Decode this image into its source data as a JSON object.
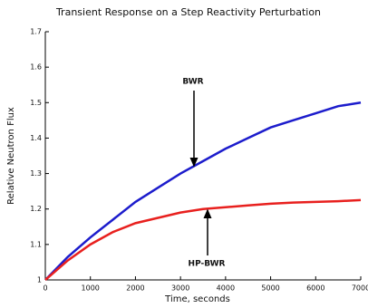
{
  "chart_data": {
    "type": "line",
    "title": "Transient Response on a Step Reactivity Perturbation",
    "x_label": "Time, seconds",
    "y_label": "Relative Neutron Flux",
    "x": [
      0,
      500,
      1000,
      1500,
      2000,
      2500,
      3000,
      3500,
      4000,
      4500,
      5000,
      5500,
      6000,
      6500,
      7000
    ],
    "series": [
      {
        "name": "BWR",
        "color": "#1c1ccc",
        "values": [
          1.0,
          1.065,
          1.12,
          1.17,
          1.22,
          1.26,
          1.3,
          1.335,
          1.37,
          1.4,
          1.43,
          1.45,
          1.47,
          1.49,
          1.5
        ]
      },
      {
        "name": "HP-BWR",
        "color": "#e8201e",
        "values": [
          1.0,
          1.055,
          1.1,
          1.135,
          1.16,
          1.175,
          1.19,
          1.2,
          1.205,
          1.21,
          1.215,
          1.218,
          1.22,
          1.222,
          1.225
        ]
      }
    ],
    "xlim": [
      0,
      7000
    ],
    "xticks": [
      0,
      1000,
      2000,
      3000,
      4000,
      5000,
      6000,
      7000
    ],
    "ylim": [
      1,
      1.7
    ],
    "yticks": [
      1,
      1.1,
      1.2,
      1.3,
      1.4,
      1.5,
      1.6,
      1.7
    ],
    "grid": false
  }
}
